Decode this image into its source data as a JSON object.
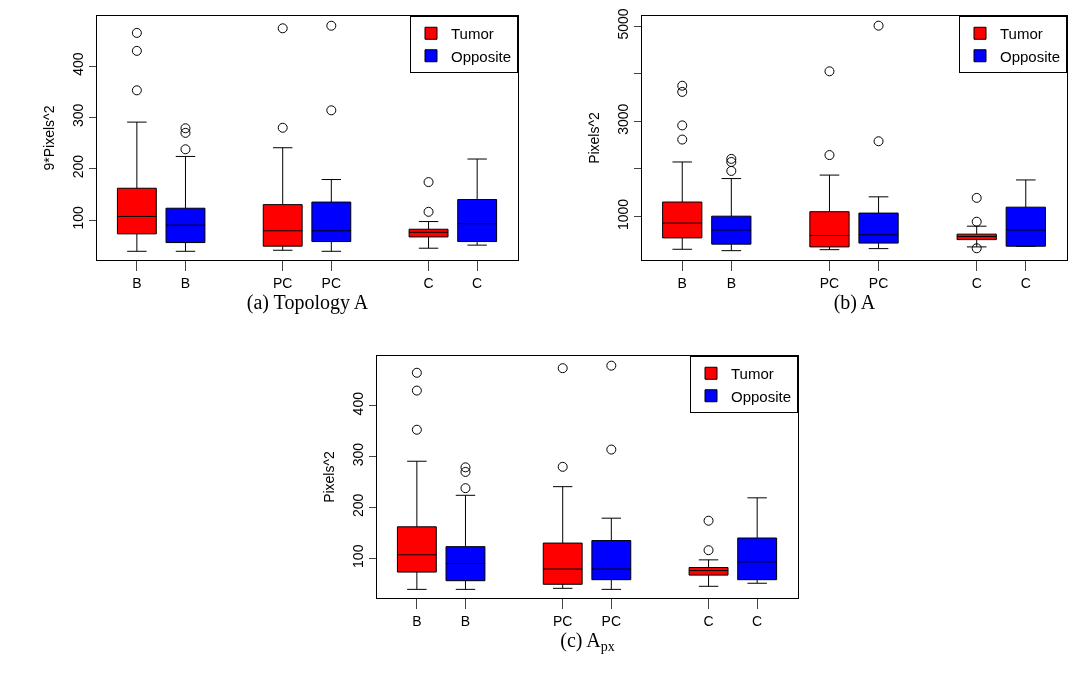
{
  "chart_data": [
    {
      "type": "box",
      "xlabel": "(a) Topology A",
      "ylabel": "9*Pixels^2",
      "categories": [
        "B",
        "PC",
        "C"
      ],
      "ylim": [
        22,
        498
      ],
      "yticks": [
        100,
        200,
        300,
        400
      ],
      "legend": "top right",
      "series": [
        {
          "name": "Tumor",
          "color": "#ff0000",
          "boxes": [
            {
              "low": 39,
              "q1": 73,
              "median": 107,
              "q3": 162,
              "high": 291,
              "outliers": [
                465,
                430,
                353
              ]
            },
            {
              "low": 41,
              "q1": 49,
              "median": 79,
              "q3": 130,
              "high": 241,
              "outliers": [
                474,
                280
              ]
            },
            {
              "low": 45,
              "q1": 67,
              "median": 76,
              "q3": 82,
              "high": 97,
              "outliers": [
                174,
                116
              ]
            }
          ]
        },
        {
          "name": "Opposite",
          "color": "#0000ff",
          "boxes": [
            {
              "low": 39,
              "q1": 56,
              "median": 90,
              "q3": 123,
              "high": 224,
              "outliers": [
                279,
                270,
                238
              ]
            },
            {
              "low": 39,
              "q1": 58,
              "median": 79,
              "q3": 135,
              "high": 179,
              "outliers": [
                479,
                314
              ]
            },
            {
              "low": 51,
              "q1": 58,
              "median": 93,
              "q3": 140,
              "high": 219
            }
          ]
        }
      ]
    },
    {
      "type": "box",
      "xlabel": "(b) A",
      "ylabel": "Pixels^2",
      "categories": [
        "B",
        "PC",
        "C"
      ],
      "ylim": [
        87,
        5210
      ],
      "yticks": [
        1000,
        {
          "value": 2000,
          "label": null
        },
        3000,
        {
          "value": 4000,
          "label": null
        },
        5000
      ],
      "legend": "top right",
      "series": [
        {
          "name": "Tumor",
          "color": "#ff0000",
          "boxes": [
            {
              "low": 312,
              "q1": 551,
              "median": 862,
              "q3": 1304,
              "high": 2145,
              "outliers": [
                3746,
                3616,
                2913,
                2616
              ]
            },
            {
              "low": 304,
              "q1": 362,
              "median": 601,
              "q3": 1101,
              "high": 1870,
              "outliers": [
                4049,
                2290
              ]
            },
            {
              "low": 362,
              "q1": 515,
              "median": 580,
              "q3": 630,
              "high": 797,
              "outliers": [
                1391,
                891,
                333
              ]
            }
          ]
        },
        {
          "name": "Opposite",
          "color": "#0000ff",
          "boxes": [
            {
              "low": 283,
              "q1": 420,
              "median": 717,
              "q3": 1007,
              "high": 1797,
              "outliers": [
                2210,
                2145,
                1957
              ]
            },
            {
              "low": 326,
              "q1": 442,
              "median": 616,
              "q3": 1072,
              "high": 1413,
              "outliers": [
                5007,
                2580
              ]
            },
            {
              "low": 377,
              "q1": 377,
              "median": 717,
              "q3": 1196,
              "high": 1768
            }
          ]
        }
      ]
    },
    {
      "type": "box",
      "xlabel": "(c) A$_{px}$",
      "ylabel": "Pixels^2",
      "categories": [
        "B",
        "PC",
        "C"
      ],
      "ylim": [
        22,
        498
      ],
      "yticks": [
        100,
        200,
        300,
        400
      ],
      "legend": "top right",
      "series": [
        {
          "name": "Tumor",
          "color": "#ff0000",
          "boxes": [
            {
              "low": 39,
              "q1": 73,
              "median": 107,
              "q3": 162,
              "high": 291,
              "outliers": [
                465,
                430,
                353
              ]
            },
            {
              "low": 41,
              "q1": 49,
              "median": 79,
              "q3": 130,
              "high": 241,
              "outliers": [
                474,
                280
              ]
            },
            {
              "low": 45,
              "q1": 67,
              "median": 76,
              "q3": 82,
              "high": 97,
              "outliers": [
                174,
                116
              ]
            }
          ]
        },
        {
          "name": "Opposite",
          "color": "#0000ff",
          "boxes": [
            {
              "low": 39,
              "q1": 56,
              "median": 90,
              "q3": 123,
              "high": 224,
              "outliers": [
                279,
                270,
                238
              ]
            },
            {
              "low": 39,
              "q1": 58,
              "median": 79,
              "q3": 135,
              "high": 179,
              "outliers": [
                479,
                314
              ]
            },
            {
              "low": 51,
              "q1": 58,
              "median": 93,
              "q3": 140,
              "high": 219
            }
          ]
        }
      ]
    }
  ]
}
